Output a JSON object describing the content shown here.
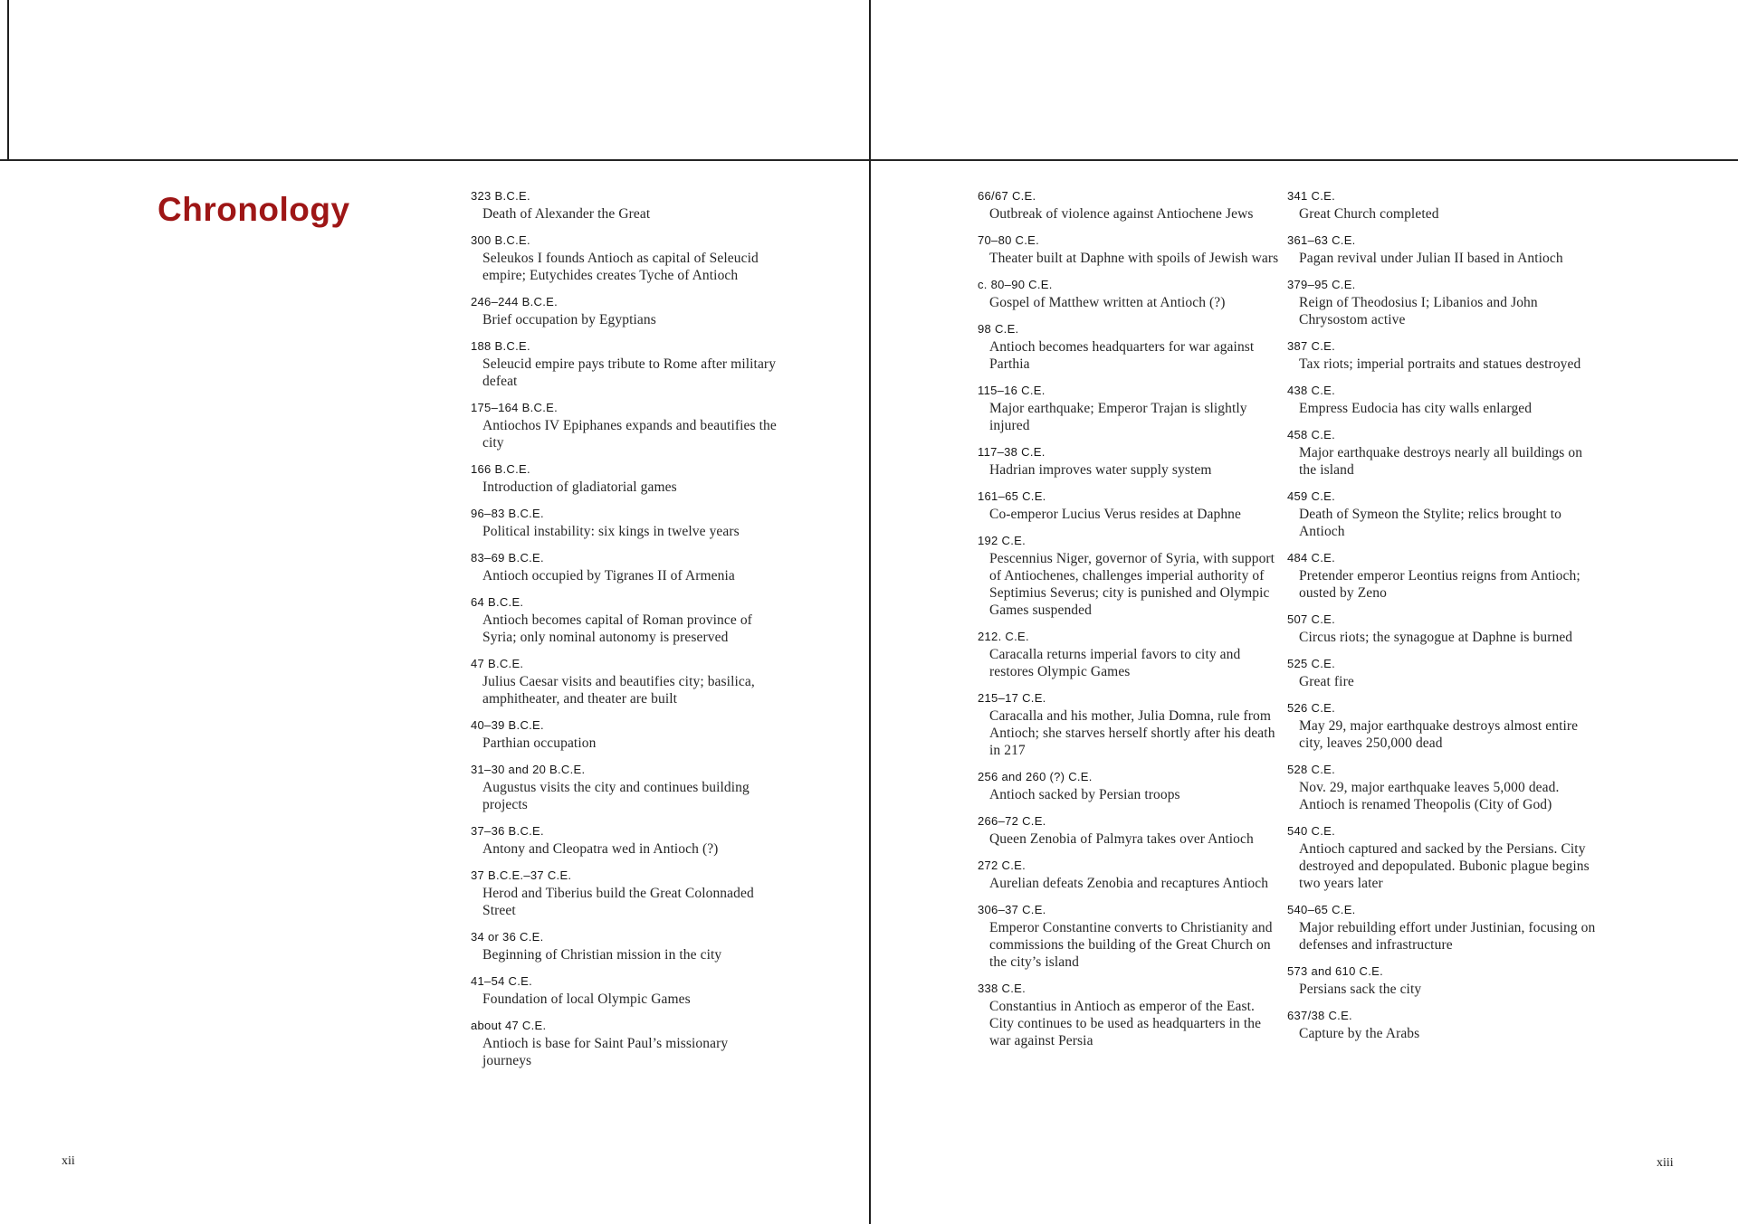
{
  "title": "Chronology",
  "colors": {
    "accent_red": "#9e1616",
    "ink": "#262626",
    "rule": "#1f1f1f"
  },
  "pages": {
    "left": {
      "folio": "xii",
      "entries": [
        {
          "date": "323 B.C.E.",
          "text": "Death of Alexander the Great"
        },
        {
          "date": "300 B.C.E.",
          "text": "Seleukos I founds Antioch as capital of Seleucid empire; Eutychides creates Tyche of Antioch"
        },
        {
          "date": "246–244 B.C.E.",
          "text": "Brief occupation by Egyptians"
        },
        {
          "date": "188 B.C.E.",
          "text": "Seleucid empire pays tribute to Rome after military defeat"
        },
        {
          "date": "175–164 B.C.E.",
          "text": "Antiochos IV Epiphanes expands and beautifies the city"
        },
        {
          "date": "166 B.C.E.",
          "text": "Introduction of gladiatorial games"
        },
        {
          "date": "96–83 B.C.E.",
          "text": "Political instability: six kings in twelve years"
        },
        {
          "date": "83–69 B.C.E.",
          "text": "Antioch occupied by Tigranes II of Armenia"
        },
        {
          "date": "64 B.C.E.",
          "text": "Antioch becomes capital of Roman province of Syria; only nominal autonomy is preserved"
        },
        {
          "date": "47 B.C.E.",
          "text": "Julius Caesar visits and beautifies city; basilica, amphitheater, and theater are built"
        },
        {
          "date": "40–39 B.C.E.",
          "text": "Parthian occupation"
        },
        {
          "date": "31–30 and 20 B.C.E.",
          "text": "Augustus visits the city and continues building projects"
        },
        {
          "date": "37–36 B.C.E.",
          "text": "Antony and Cleopatra wed in Antioch (?)"
        },
        {
          "date": "37 B.C.E.–37 C.E.",
          "text": "Herod and Tiberius build the Great Colonnaded Street"
        },
        {
          "date": "34 or 36 C.E.",
          "text": "Beginning of Christian mission in the city"
        },
        {
          "date": "41–54 C.E.",
          "text": "Foundation of local Olympic Games"
        },
        {
          "date": "about 47 C.E.",
          "text": "Antioch is base for Saint Paul’s missionary journeys"
        }
      ]
    },
    "right": {
      "folio": "xiii",
      "column1": [
        {
          "date": "66/67 C.E.",
          "text": "Outbreak of violence against Antiochene Jews"
        },
        {
          "date": "70–80 C.E.",
          "text": "Theater built at Daphne with spoils of Jewish wars"
        },
        {
          "date": "c. 80–90 C.E.",
          "text": "Gospel of Matthew written at Antioch (?)"
        },
        {
          "date": "98 C.E.",
          "text": "Antioch becomes headquarters for war against Parthia"
        },
        {
          "date": "115–16 C.E.",
          "text": "Major earthquake; Emperor Trajan is slightly injured"
        },
        {
          "date": "117–38 C.E.",
          "text": "Hadrian improves water supply system"
        },
        {
          "date": "161–65 C.E.",
          "text": "Co-emperor Lucius Verus resides at Daphne"
        },
        {
          "date": "192 C.E.",
          "text": "Pescennius Niger, governor of Syria, with support of Antiochenes, challenges imperial authority of Septimius Severus; city is punished and Olympic Games suspended"
        },
        {
          "date": "212. C.E.",
          "text": "Caracalla returns imperial favors to city and restores Olympic Games"
        },
        {
          "date": "215–17 C.E.",
          "text": "Caracalla and his mother, Julia Domna, rule from Antioch; she starves herself shortly after his death in 217"
        },
        {
          "date": "256 and 260 (?) C.E.",
          "text": "Antioch sacked by Persian troops"
        },
        {
          "date": "266–72 C.E.",
          "text": "Queen Zenobia of Palmyra takes over Antioch"
        },
        {
          "date": "272 C.E.",
          "text": "Aurelian defeats Zenobia and recaptures Antioch"
        },
        {
          "date": "306–37 C.E.",
          "text": "Emperor Constantine converts to Christianity and commissions the building of the Great Church on the city’s island"
        },
        {
          "date": "338 C.E.",
          "text": "Constantius in Antioch as emperor of the East. City continues to be used as headquarters in the war against Persia"
        }
      ],
      "column2": [
        {
          "date": "341 C.E.",
          "text": "Great Church completed"
        },
        {
          "date": "361–63 C.E.",
          "text": "Pagan revival under Julian II based in Antioch"
        },
        {
          "date": "379–95 C.E.",
          "text": "Reign of Theodosius I; Libanios and John Chrysostom active"
        },
        {
          "date": "387 C.E.",
          "text": "Tax riots; imperial portraits and statues destroyed"
        },
        {
          "date": "438 C.E.",
          "text": "Empress Eudocia has city walls enlarged"
        },
        {
          "date": "458 C.E.",
          "text": "Major earthquake destroys nearly all buildings on the island"
        },
        {
          "date": "459 C.E.",
          "text": "Death of Symeon the Stylite; relics brought to Antioch"
        },
        {
          "date": "484 C.E.",
          "text": "Pretender emperor Leontius reigns from Antioch; ousted by Zeno"
        },
        {
          "date": "507 C.E.",
          "text": "Circus riots; the synagogue at Daphne is burned"
        },
        {
          "date": "525 C.E.",
          "text": "Great fire"
        },
        {
          "date": "526 C.E.",
          "text": "May 29, major earthquake destroys almost entire city, leaves 250,000 dead"
        },
        {
          "date": "528 C.E.",
          "text": "Nov. 29, major earthquake leaves 5,000 dead. Antioch is renamed Theopolis (City of God)"
        },
        {
          "date": "540 C.E.",
          "text": "Antioch captured and sacked by the Persians. City destroyed and depopulated. Bubonic plague begins two years later"
        },
        {
          "date": "540–65 C.E.",
          "text": "Major rebuilding effort under Justinian, focusing on defenses and infrastructure"
        },
        {
          "date": "573 and 610 C.E.",
          "text": "Persians sack the city"
        },
        {
          "date": "637/38 C.E.",
          "text": "Capture by the Arabs"
        }
      ]
    }
  }
}
